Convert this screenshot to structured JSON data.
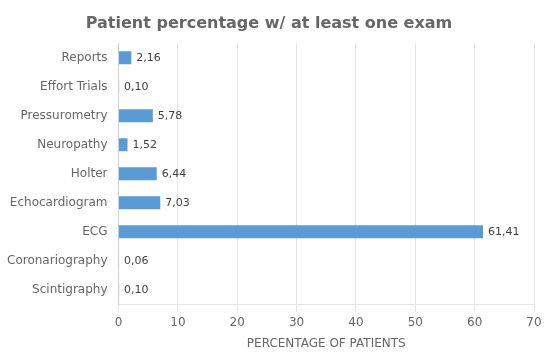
{
  "chart_data": {
    "type": "bar",
    "orientation": "horizontal",
    "title": "Patient percentage w/ at least one exam",
    "xlabel": "PERCENTAGE OF PATIENTS",
    "categories": [
      "Scintigraphy",
      "Coronariography",
      "ECG",
      "Echocardiogram",
      "Holter",
      "Neuropathy",
      "Pressurometry",
      "Effort Trials",
      "Reports"
    ],
    "values": [
      0.1,
      0.06,
      61.41,
      7.03,
      6.44,
      1.52,
      5.78,
      0.1,
      2.16
    ],
    "value_labels": [
      "0,10",
      "0,06",
      "61,41",
      "7,03",
      "6,44",
      "1,52",
      "5,78",
      "0,10",
      "2,16"
    ],
    "data_labels": true,
    "color": "#5b9bd5",
    "xlim": [
      0,
      70
    ],
    "xticks": [
      0,
      10,
      20,
      30,
      40,
      50,
      60,
      70
    ],
    "grid": true
  }
}
